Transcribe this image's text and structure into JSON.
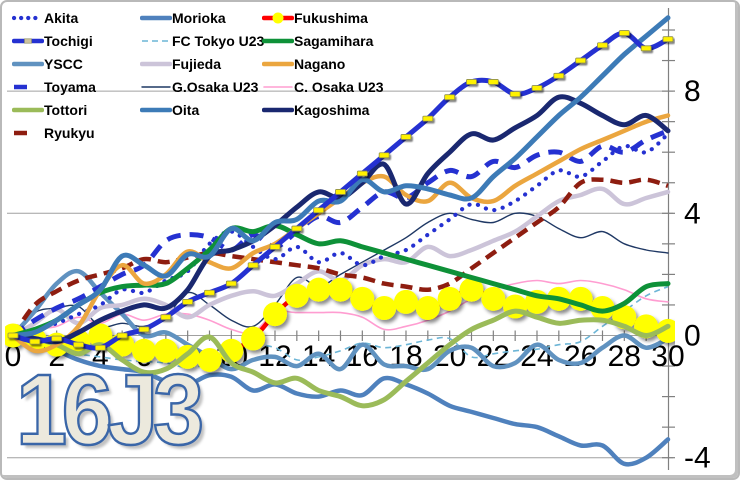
{
  "chart_data": {
    "type": "line",
    "title": "16J3",
    "watermark": "16J3",
    "xlabel": "",
    "ylabel": "",
    "x_range": [
      0,
      30
    ],
    "ylim": [
      -4.4,
      10.6
    ],
    "grid": "horizontal-only",
    "legend_position": "top-left",
    "axis_color": "#808080",
    "grid_color": "#a0a0a0",
    "label_color": "#000000",
    "x_ticks": [
      {
        "label": "0",
        "value": 0
      },
      {
        "label": "2",
        "value": 2
      },
      {
        "label": "4",
        "value": 4
      },
      {
        "label": "6",
        "value": 6
      },
      {
        "label": "8",
        "value": 8
      },
      {
        "label": "10",
        "value": 10
      },
      {
        "label": "12",
        "value": 12
      },
      {
        "label": "14",
        "value": 14
      },
      {
        "label": "16",
        "value": 16
      },
      {
        "label": "18",
        "value": 18
      },
      {
        "label": "20",
        "value": 20
      },
      {
        "label": "22",
        "value": 22
      },
      {
        "label": "24",
        "value": 24
      },
      {
        "label": "26",
        "value": 26
      },
      {
        "label": "28",
        "value": 28
      },
      {
        "label": "30",
        "value": 30
      }
    ],
    "y_ticks": [
      {
        "label": "8",
        "value": 8
      },
      {
        "label": "4",
        "value": 4
      },
      {
        "label": "0",
        "value": 0
      },
      {
        "label": "-4",
        "value": -4
      }
    ],
    "y_minor_ticks": {
      "min": -4,
      "max": 10,
      "step": 1
    },
    "x": [
      0,
      1,
      2,
      3,
      4,
      5,
      6,
      7,
      8,
      9,
      10,
      11,
      12,
      13,
      14,
      15,
      16,
      17,
      18,
      19,
      20,
      21,
      22,
      23,
      24,
      25,
      26,
      27,
      28,
      29,
      30
    ],
    "series": [
      {
        "name": "Akita",
        "color": "#2531d1",
        "width": 4.2,
        "dasharray": "0.1 8.6",
        "linecap": "round",
        "marker": "none",
        "z": 9,
        "values": [
          0,
          0.2,
          0.4,
          0.7,
          1.0,
          1.5,
          1.4,
          1.8,
          2.1,
          3.0,
          3.4,
          2.9,
          2.5,
          2.9,
          2.4,
          2.7,
          2.3,
          2.6,
          2.8,
          3.3,
          3.8,
          4.3,
          4.1,
          4.4,
          4.9,
          5.4,
          5.2,
          5.7,
          6.2,
          6.0,
          6.6
        ]
      },
      {
        "name": "Tochigi",
        "color": "#2531d1",
        "width": 5,
        "dasharray": "",
        "linecap": "round",
        "marker": "rect",
        "marker_fill": "#fff200",
        "marker_stroke": "#8f8f4b",
        "z": 16,
        "values": [
          0,
          -0.2,
          -0.1,
          -0.3,
          -0.4,
          0,
          0.2,
          0.6,
          1.1,
          1.4,
          1.7,
          2.3,
          2.9,
          3.5,
          4.1,
          4.7,
          5.3,
          5.9,
          6.5,
          7.1,
          7.8,
          8.3,
          8.3,
          7.9,
          8.1,
          8.5,
          9.0,
          9.5,
          9.9,
          9.4,
          9.7
        ]
      },
      {
        "name": "YSCC",
        "color": "#6092c0",
        "width": 4.5,
        "dasharray": "",
        "linecap": "round",
        "marker": "none",
        "z": 4,
        "values": [
          0,
          0.8,
          1.7,
          2.1,
          1.4,
          0.7,
          0,
          0.1,
          -0.3,
          -0.7,
          -1.1,
          -0.8,
          -0.7,
          -1.0,
          -0.6,
          -1.1,
          -0.3,
          -0.95,
          -1.0,
          -1.1,
          -0.5,
          -0.4,
          -1.0,
          -0.9,
          -0.3,
          -0.8,
          -0.9,
          -0.4,
          0,
          -0.4,
          -0.1
        ]
      },
      {
        "name": "Toyama",
        "color": "#2531d1",
        "width": 5,
        "dasharray": "14 9",
        "linecap": "butt",
        "marker": "none",
        "z": 8,
        "values": [
          0,
          0.5,
          0.9,
          1.2,
          1.6,
          2.0,
          2.3,
          3.1,
          3.3,
          3.2,
          2.8,
          3.3,
          2.9,
          3.4,
          3.9,
          3.7,
          4.2,
          4.7,
          4.5,
          5.0,
          5.4,
          5.2,
          5.7,
          5.5,
          5.9,
          6.0,
          5.7,
          6.2,
          6.0,
          6.4,
          6.7
        ]
      },
      {
        "name": "Tottori",
        "color": "#9bbb59",
        "width": 5,
        "dasharray": "",
        "linecap": "round",
        "marker": "none",
        "z": 11,
        "values": [
          0,
          -0.1,
          -0.3,
          -0.6,
          -0.3,
          -0.8,
          -1.2,
          -1.1,
          -0.6,
          -0.05,
          -0.9,
          -1.2,
          -1.55,
          -1.4,
          -1.8,
          -2.0,
          -2.3,
          -2.1,
          -1.5,
          -0.9,
          -0.3,
          0.2,
          0.5,
          0.8,
          0.6,
          0.4,
          0.5,
          0.5,
          0.3,
          0.0,
          0.3
        ]
      },
      {
        "name": "Ryukyu",
        "color": "#8e1d10",
        "width": 4.5,
        "dasharray": "12 7",
        "linecap": "butt",
        "marker": "none",
        "z": 7,
        "values": [
          0,
          1.0,
          1.45,
          1.8,
          2.0,
          2.2,
          2.5,
          2.4,
          2.55,
          2.7,
          2.6,
          2.5,
          2.4,
          2.3,
          2.2,
          2.0,
          1.9,
          1.7,
          1.6,
          1.5,
          1.7,
          2.2,
          2.7,
          3.2,
          3.7,
          4.2,
          5.0,
          5.1,
          5.0,
          5.1,
          4.9
        ]
      },
      {
        "name": "Morioka",
        "color": "#4f81bd",
        "width": 4.5,
        "dasharray": "",
        "linecap": "round",
        "marker": "none",
        "z": 5,
        "values": [
          0,
          -0.3,
          -0.5,
          -0.8,
          -1.0,
          -1.1,
          -1.2,
          -1.5,
          -1.6,
          -1.3,
          -1.35,
          -1.8,
          -1.6,
          -1.9,
          -2.0,
          -1.8,
          -1.95,
          -1.4,
          -1.6,
          -1.9,
          -2.3,
          -2.5,
          -2.7,
          -2.9,
          -3.0,
          -3.3,
          -3.6,
          -3.6,
          -4.2,
          -4.0,
          -3.4
        ]
      },
      {
        "name": "FC Tokyo U23",
        "color": "#6cb5d6",
        "width": 1.6,
        "dasharray": "6 4.5",
        "linecap": "butt",
        "marker": "none",
        "z": 2,
        "values": [
          0,
          -0.2,
          -0.4,
          -0.6,
          -0.7,
          -0.8,
          -0.85,
          -0.9,
          -1.05,
          -0.9,
          -0.4,
          -0.3,
          -0.4,
          -0.8,
          -0.7,
          -0.5,
          -0.25,
          -0.4,
          -0.3,
          -0.15,
          -0.1,
          -0.7,
          -0.6,
          -0.5,
          -0.45,
          -0.3,
          -0.2,
          0.3,
          0.8,
          1.3,
          1.6
        ]
      },
      {
        "name": "Fujieda",
        "color": "#ccc4d9",
        "width": 4.5,
        "dasharray": "",
        "linecap": "round",
        "marker": "none",
        "z": 6,
        "values": [
          0,
          0.4,
          0.85,
          0.4,
          0.9,
          1.0,
          1.2,
          1.0,
          0.6,
          1.0,
          1.3,
          1.45,
          1.3,
          1.7,
          2.1,
          1.8,
          2.3,
          2.5,
          2.4,
          2.9,
          2.6,
          2.8,
          3.1,
          3.4,
          3.9,
          4.4,
          4.6,
          4.8,
          4.3,
          4.5,
          4.7
        ]
      },
      {
        "name": "G.Osaka U23",
        "color": "#1f3864",
        "width": 1.4,
        "dasharray": "",
        "linecap": "round",
        "marker": "none",
        "z": 3,
        "values": [
          0,
          0.75,
          0.9,
          0.95,
          0.3,
          0.4,
          0.3,
          0.6,
          1.4,
          1.0,
          0.5,
          0.3,
          1.0,
          1.9,
          1.6,
          2.0,
          2.4,
          2.8,
          3.2,
          3.7,
          4.0,
          3.8,
          3.7,
          4.0,
          3.9,
          3.5,
          3.2,
          3.4,
          3.0,
          2.8,
          2.7
        ]
      },
      {
        "name": "Oita",
        "color": "#3d7bb7",
        "width": 5,
        "dasharray": "",
        "linecap": "round",
        "marker": "none",
        "z": 15,
        "values": [
          0,
          0.1,
          0.5,
          1.0,
          1.5,
          2.6,
          2.3,
          1.95,
          2.65,
          2.6,
          3.5,
          3.1,
          3.7,
          3.8,
          4.4,
          4.4,
          5.1,
          4.7,
          4.9,
          4.8,
          4.6,
          4.5,
          5.2,
          5.8,
          6.5,
          7.2,
          7.8,
          8.5,
          9.2,
          9.8,
          10.4
        ]
      },
      {
        "name": "Fukushima",
        "color": "#ff0000",
        "width": 4.5,
        "dasharray": "",
        "linecap": "round",
        "marker": "circle",
        "marker_fill": "#ffff00",
        "marker_stroke": "none",
        "z": 10,
        "values": [
          0,
          -0.15,
          -0.3,
          -0.2,
          0,
          -0.3,
          -0.5,
          -0.5,
          -0.7,
          -0.8,
          -0.5,
          -0.1,
          0.7,
          1.3,
          1.5,
          1.5,
          1.2,
          0.9,
          1.1,
          0.9,
          1.2,
          1.5,
          1.2,
          0.95,
          1.1,
          1.2,
          1.2,
          0.9,
          0.6,
          0.3,
          0.15
        ]
      },
      {
        "name": "Sagamihara",
        "color": "#0e9138",
        "width": 5,
        "dasharray": "",
        "linecap": "round",
        "marker": "none",
        "z": 12,
        "values": [
          0,
          0.2,
          0.5,
          1.0,
          1.4,
          1.6,
          1.65,
          1.7,
          2.2,
          2.8,
          3.5,
          3.4,
          3.6,
          3.3,
          3.0,
          3.1,
          2.9,
          2.7,
          2.5,
          2.3,
          2.1,
          1.9,
          1.7,
          1.5,
          1.3,
          1.2,
          1.0,
          0.8,
          1.05,
          1.6,
          1.7
        ]
      },
      {
        "name": "Nagano",
        "color": "#eba63f",
        "width": 4.5,
        "dasharray": "",
        "linecap": "round",
        "marker": "none",
        "z": 13,
        "values": [
          0,
          -0.5,
          -0.3,
          0.3,
          1.5,
          2.3,
          1.7,
          2.0,
          2.75,
          2.4,
          2.2,
          2.7,
          3.0,
          3.5,
          4.0,
          4.5,
          5.0,
          5.2,
          4.6,
          4.4,
          5.0,
          4.5,
          4.4,
          4.9,
          5.3,
          5.7,
          6.1,
          6.4,
          6.7,
          7.0,
          7.2
        ]
      },
      {
        "name": "C. Osaka U23",
        "color": "#ff9dd1",
        "width": 1.6,
        "dasharray": "",
        "linecap": "round",
        "marker": "none",
        "z": 1,
        "values": [
          0,
          0.2,
          0.3,
          0.6,
          0.4,
          0.7,
          0.5,
          0.7,
          0.7,
          0.5,
          0.2,
          0.1,
          0.75,
          0.75,
          0.75,
          0.75,
          0.6,
          0.2,
          0.3,
          0.5,
          0.8,
          1.2,
          1.5,
          1.7,
          1.8,
          1.7,
          1.8,
          1.7,
          1.5,
          1.2,
          1.1
        ]
      },
      {
        "name": "Kagoshima",
        "color": "#1a2870",
        "width": 5,
        "dasharray": "",
        "linecap": "round",
        "marker": "none",
        "z": 14,
        "values": [
          0,
          -0.1,
          -0.2,
          0.1,
          0.5,
          0.8,
          1.0,
          0.9,
          1.5,
          2.6,
          2.8,
          3.1,
          3.6,
          4.2,
          4.7,
          4.5,
          5.0,
          5.6,
          4.3,
          5.3,
          6.0,
          6.6,
          6.4,
          6.8,
          7.2,
          7.8,
          7.6,
          7.2,
          6.9,
          7.2,
          6.7
        ]
      }
    ]
  },
  "legend_columns": [
    [
      0,
      1,
      2,
      3,
      4,
      5
    ],
    [
      6,
      7,
      8,
      9,
      10
    ],
    [
      11,
      12,
      13,
      14,
      15
    ]
  ]
}
